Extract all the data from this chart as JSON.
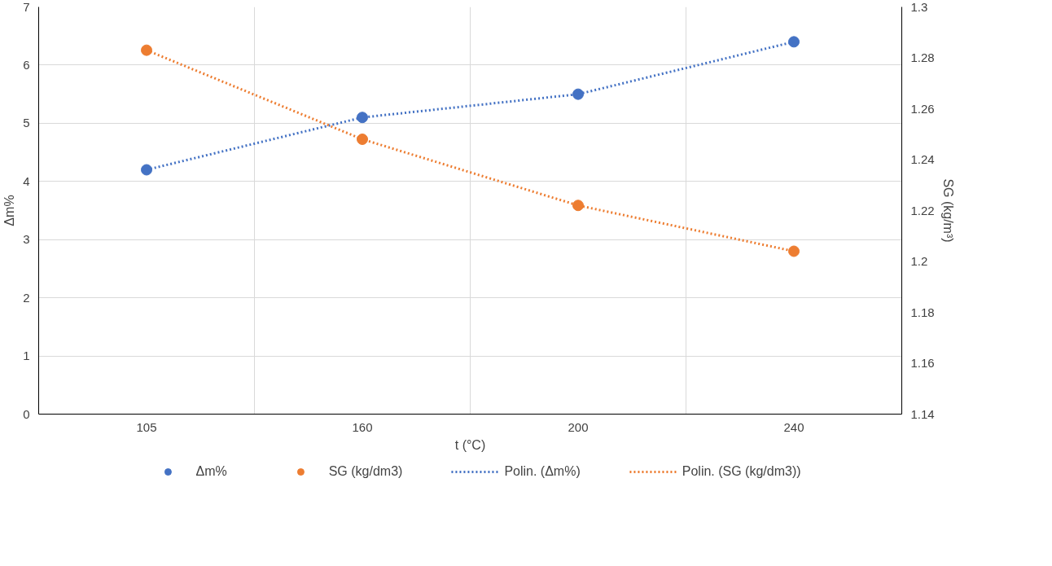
{
  "chart_data": {
    "type": "scatter",
    "xlabel": "t (°C)",
    "ylabel": "Δm%",
    "y2label": "SG (kg/m³)",
    "categories": [
      "105",
      "160",
      "200",
      "240"
    ],
    "series": [
      {
        "name": "Δm%",
        "color": "#4472c4",
        "marker": "circle",
        "values": [
          4.2,
          5.1,
          5.5,
          6.4
        ]
      },
      {
        "name": "SG (kg/dm3)",
        "color": "#ed7d31",
        "marker": "circle",
        "axis": "y2",
        "values": [
          1.283,
          1.248,
          1.222,
          1.204
        ]
      },
      {
        "name": "Polin. (Δm%)",
        "type": "line",
        "color": "#4472c4",
        "line_style": "dotted",
        "marker": "none",
        "values": [
          4.2,
          5.1,
          5.5,
          6.4
        ]
      },
      {
        "name": "Polin. (SG (kg/dm3))",
        "type": "line",
        "color": "#ed7d31",
        "line_style": "dotted",
        "marker": "none",
        "axis": "y2",
        "values": [
          1.283,
          1.248,
          1.222,
          1.204
        ]
      }
    ],
    "ylim": [
      0,
      7
    ],
    "yticks": [
      0,
      1,
      2,
      3,
      4,
      5,
      6,
      7
    ],
    "y2lim": [
      1.14,
      1.3
    ],
    "y2ticks": [
      1.14,
      1.16,
      1.18,
      1.2,
      1.22,
      1.24,
      1.26,
      1.28,
      1.3
    ],
    "grid": true,
    "legend": "bottom"
  }
}
